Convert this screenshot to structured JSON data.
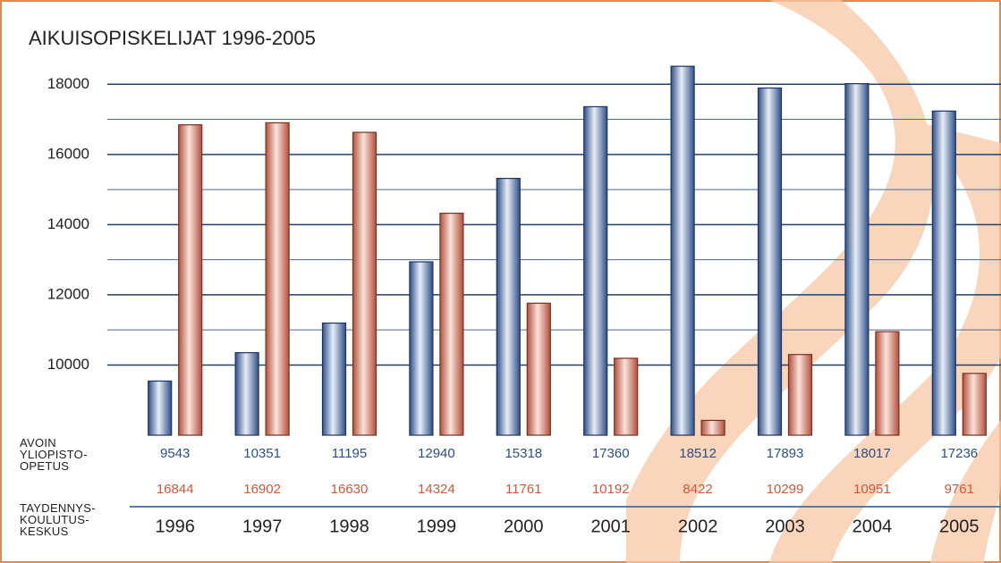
{
  "chart_data": {
    "type": "bar",
    "title": "AIKUISOPISKELIJAT 1996-2005",
    "categories": [
      "1996",
      "1997",
      "1998",
      "1999",
      "2000",
      "2001",
      "2002",
      "2003",
      "2004",
      "2005"
    ],
    "series": [
      {
        "name": "AVOIN\nYLIOPISTO-\nOPETUS",
        "color": "#5b7fb0",
        "label_color": "#2d4f86",
        "values": [
          9543,
          10351,
          11195,
          12940,
          15318,
          17360,
          18512,
          17893,
          18017,
          17236
        ]
      },
      {
        "name": "TAYDENNYS-\nKOULUTUS-\nKESKUS",
        "color": "#e6a08f",
        "label_color": "#d2563a",
        "values": [
          16844,
          16902,
          16630,
          14324,
          11761,
          10192,
          8422,
          10299,
          10951,
          9761
        ]
      }
    ],
    "ylim": [
      8000,
      19000
    ],
    "yticks": [
      10000,
      12000,
      14000,
      16000,
      18000
    ],
    "minor_yticks": [
      11000,
      13000,
      15000,
      17000
    ],
    "grid": true
  }
}
